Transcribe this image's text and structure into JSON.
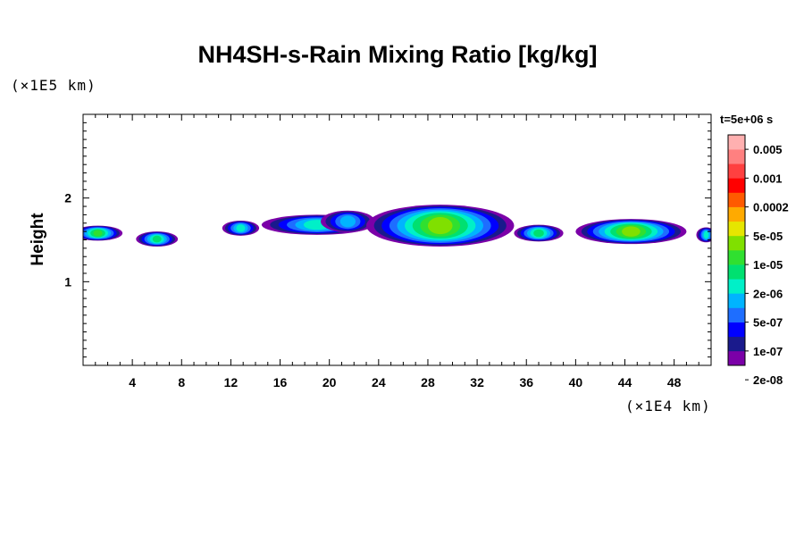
{
  "chart_data": {
    "type": "heatmap",
    "title": "NH4SH-s-Rain Mixing Ratio [kg/kg]",
    "xlabel": "",
    "ylabel": "Height",
    "x_unit_label": "(×1E4 km)",
    "y_unit_label": "(×1E5 km)",
    "time_label": "t=5e+06 s",
    "xlim": [
      0,
      51
    ],
    "ylim": [
      0,
      3
    ],
    "x_ticks": [
      4,
      8,
      12,
      16,
      20,
      24,
      28,
      32,
      36,
      40,
      44,
      48
    ],
    "y_ticks": [
      1,
      2
    ],
    "grid": false,
    "colorbar": {
      "placement": "right",
      "levels": [
        "0.005",
        "0.001",
        "0.0002",
        "5e-05",
        "1e-05",
        "2e-06",
        "5e-07",
        "1e-07",
        "2e-08"
      ],
      "colors": [
        "#7b00a8",
        "#1a1a8c",
        "#0000ff",
        "#1e6eff",
        "#00b4ff",
        "#00f0c8",
        "#00e070",
        "#30e030",
        "#80e000",
        "#e6e600",
        "#ffaa00",
        "#ff5a00",
        "#ff0000",
        "#ff4040",
        "#ff8080",
        "#ffb0b0"
      ]
    },
    "cells": [
      {
        "x": 1.2,
        "z": 1.58,
        "rx": 2.0,
        "rz": 0.09,
        "level": 7
      },
      {
        "x": 6.0,
        "z": 1.51,
        "rx": 1.7,
        "rz": 0.09,
        "level": 6
      },
      {
        "x": 12.8,
        "z": 1.64,
        "rx": 1.5,
        "rz": 0.09,
        "level": 5
      },
      {
        "x": 19.0,
        "z": 1.68,
        "rx": 4.5,
        "rz": 0.12,
        "level": 5
      },
      {
        "x": 21.5,
        "z": 1.72,
        "rx": 2.2,
        "rz": 0.13,
        "level": 4
      },
      {
        "x": 29.0,
        "z": 1.67,
        "rx": 6.0,
        "rz": 0.25,
        "level": 8
      },
      {
        "x": 37.0,
        "z": 1.58,
        "rx": 2.0,
        "rz": 0.1,
        "level": 6
      },
      {
        "x": 44.5,
        "z": 1.6,
        "rx": 4.5,
        "rz": 0.15,
        "level": 8
      },
      {
        "x": 50.6,
        "z": 1.56,
        "rx": 0.8,
        "rz": 0.09,
        "level": 5
      }
    ]
  }
}
